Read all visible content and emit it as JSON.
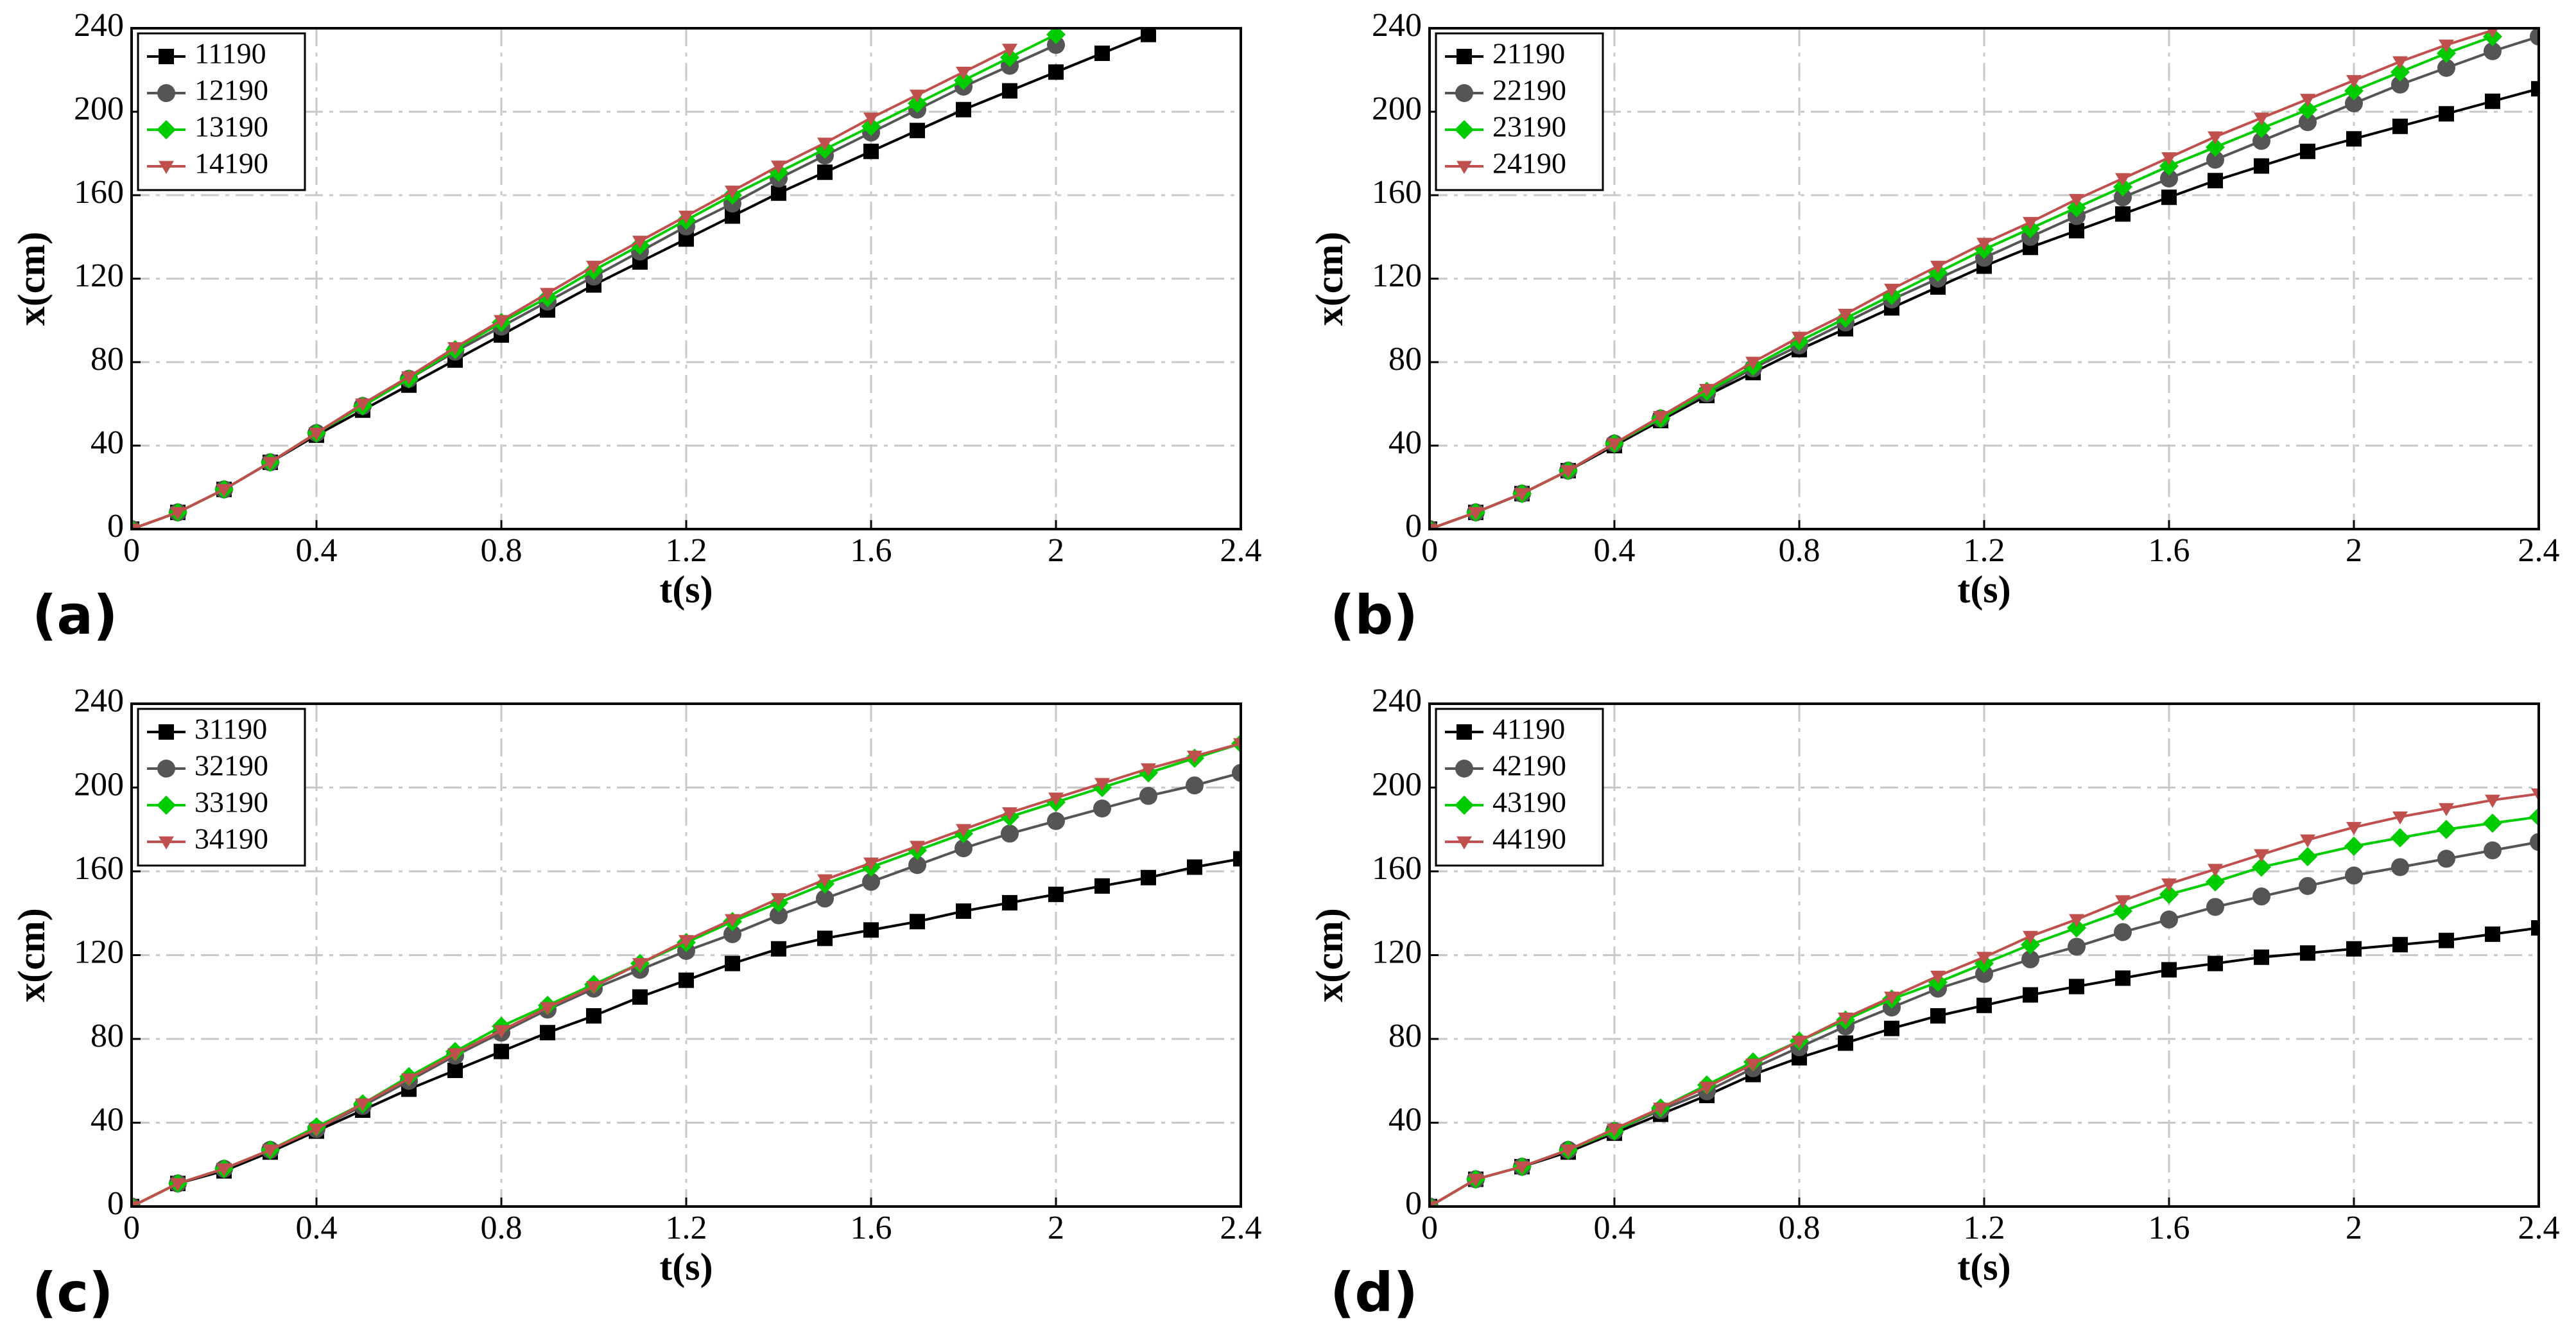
{
  "chart_data": [
    {
      "type": "line",
      "panel": "(a)",
      "xlabel": "t(s)",
      "ylabel": "x(cm)",
      "legend": "upper left",
      "grid": true,
      "x": [
        0,
        0.1,
        0.2,
        0.3,
        0.4,
        0.5,
        0.6,
        0.7,
        0.8,
        0.9,
        1,
        1.1,
        1.2,
        1.3,
        1.4,
        1.5,
        1.6,
        1.7,
        1.8,
        1.9,
        2,
        2.1,
        2.2,
        2.3,
        2.4
      ],
      "xlim": [
        0,
        2.4
      ],
      "xticks": [
        0,
        0.4,
        0.8,
        1.2,
        1.6,
        2,
        2.4
      ],
      "ylim": [
        0,
        240
      ],
      "yticks": [
        0,
        40,
        80,
        120,
        160,
        200,
        240
      ],
      "series": [
        {
          "name": "11190",
          "color": "#000000",
          "marker": "square",
          "values": [
            0,
            8,
            19,
            32,
            45,
            57,
            69,
            81,
            93,
            105,
            117,
            128,
            139,
            150,
            161,
            171,
            181,
            191,
            201,
            210,
            219,
            228,
            237,
            null,
            null
          ]
        },
        {
          "name": "12190",
          "color": "#555555",
          "marker": "circle",
          "values": [
            0,
            8,
            19,
            32,
            46,
            59,
            72,
            85,
            97,
            109,
            121,
            133,
            145,
            156,
            168,
            179,
            190,
            201,
            212,
            222,
            232,
            null,
            null,
            null,
            null
          ]
        },
        {
          "name": "13190",
          "color": "#00cc00",
          "marker": "diamond",
          "values": [
            0,
            8,
            19,
            32,
            46,
            59,
            72,
            86,
            99,
            111,
            124,
            136,
            148,
            160,
            171,
            182,
            193,
            204,
            215,
            226,
            237,
            null,
            null,
            null,
            null
          ]
        },
        {
          "name": "14190",
          "color": "#c0504d",
          "marker": "triangle",
          "values": [
            0,
            8,
            19,
            32,
            46,
            60,
            73,
            87,
            100,
            113,
            126,
            138,
            150,
            162,
            174,
            185,
            197,
            208,
            219,
            230,
            null,
            null,
            null,
            null,
            null
          ]
        }
      ]
    },
    {
      "type": "line",
      "panel": "(b)",
      "xlabel": "t(s)",
      "ylabel": "x(cm)",
      "legend": "upper left",
      "grid": true,
      "x": [
        0,
        0.1,
        0.2,
        0.3,
        0.4,
        0.5,
        0.6,
        0.7,
        0.8,
        0.9,
        1,
        1.1,
        1.2,
        1.3,
        1.4,
        1.5,
        1.6,
        1.7,
        1.8,
        1.9,
        2,
        2.1,
        2.2,
        2.3,
        2.4
      ],
      "xlim": [
        0,
        2.4
      ],
      "xticks": [
        0,
        0.4,
        0.8,
        1.2,
        1.6,
        2,
        2.4
      ],
      "ylim": [
        0,
        240
      ],
      "yticks": [
        0,
        40,
        80,
        120,
        160,
        200,
        240
      ],
      "series": [
        {
          "name": "21190",
          "color": "#000000",
          "marker": "square",
          "values": [
            0,
            8,
            17,
            28,
            40,
            52,
            64,
            75,
            86,
            96,
            106,
            116,
            126,
            135,
            143,
            151,
            159,
            167,
            174,
            181,
            187,
            193,
            199,
            205,
            211
          ]
        },
        {
          "name": "22190",
          "color": "#555555",
          "marker": "circle",
          "values": [
            0,
            8,
            17,
            28,
            41,
            53,
            65,
            77,
            88,
            99,
            110,
            120,
            130,
            140,
            150,
            159,
            168,
            177,
            186,
            195,
            204,
            213,
            221,
            229,
            236
          ]
        },
        {
          "name": "23190",
          "color": "#00cc00",
          "marker": "diamond",
          "values": [
            0,
            8,
            17,
            28,
            41,
            53,
            66,
            78,
            90,
            101,
            112,
            123,
            134,
            144,
            154,
            164,
            174,
            183,
            192,
            201,
            210,
            219,
            228,
            236,
            null
          ]
        },
        {
          "name": "24190",
          "color": "#c0504d",
          "marker": "triangle",
          "values": [
            0,
            8,
            17,
            28,
            41,
            54,
            67,
            80,
            92,
            103,
            115,
            126,
            137,
            147,
            158,
            168,
            178,
            188,
            197,
            206,
            215,
            224,
            232,
            239,
            null
          ]
        }
      ]
    },
    {
      "type": "line",
      "panel": "(c)",
      "xlabel": "t(s)",
      "ylabel": "x(cm)",
      "legend": "upper left",
      "grid": true,
      "x": [
        0,
        0.1,
        0.2,
        0.3,
        0.4,
        0.5,
        0.6,
        0.7,
        0.8,
        0.9,
        1,
        1.1,
        1.2,
        1.3,
        1.4,
        1.5,
        1.6,
        1.7,
        1.8,
        1.9,
        2,
        2.1,
        2.2,
        2.3,
        2.4
      ],
      "xlim": [
        0,
        2.4
      ],
      "xticks": [
        0,
        0.4,
        0.8,
        1.2,
        1.6,
        2,
        2.4
      ],
      "ylim": [
        0,
        240
      ],
      "yticks": [
        0,
        40,
        80,
        120,
        160,
        200,
        240
      ],
      "series": [
        {
          "name": "31190",
          "color": "#000000",
          "marker": "square",
          "values": [
            0,
            11,
            17,
            26,
            36,
            46,
            56,
            65,
            74,
            83,
            91,
            100,
            108,
            116,
            123,
            128,
            132,
            136,
            141,
            145,
            149,
            153,
            157,
            162,
            166
          ]
        },
        {
          "name": "32190",
          "color": "#555555",
          "marker": "circle",
          "values": [
            0,
            11,
            18,
            27,
            37,
            48,
            60,
            72,
            83,
            94,
            104,
            113,
            122,
            130,
            139,
            147,
            155,
            163,
            171,
            178,
            184,
            190,
            196,
            201,
            207
          ]
        },
        {
          "name": "33190",
          "color": "#00cc00",
          "marker": "diamond",
          "values": [
            0,
            11,
            18,
            27,
            38,
            49,
            62,
            74,
            86,
            96,
            106,
            116,
            126,
            136,
            145,
            154,
            162,
            170,
            178,
            186,
            193,
            200,
            207,
            214,
            221
          ]
        },
        {
          "name": "34190",
          "color": "#c0504d",
          "marker": "triangle",
          "values": [
            0,
            11,
            18,
            27,
            37,
            49,
            61,
            73,
            84,
            95,
            105,
            116,
            127,
            137,
            147,
            156,
            164,
            172,
            180,
            188,
            195,
            202,
            209,
            215,
            221
          ]
        }
      ]
    },
    {
      "type": "line",
      "panel": "(d)",
      "xlabel": "t(s)",
      "ylabel": "x(cm)",
      "legend": "upper left",
      "grid": true,
      "x": [
        0,
        0.1,
        0.2,
        0.3,
        0.4,
        0.5,
        0.6,
        0.7,
        0.8,
        0.9,
        1,
        1.1,
        1.2,
        1.3,
        1.4,
        1.5,
        1.6,
        1.7,
        1.8,
        1.9,
        2,
        2.1,
        2.2,
        2.3,
        2.4
      ],
      "xlim": [
        0,
        2.4
      ],
      "xticks": [
        0,
        0.4,
        0.8,
        1.2,
        1.6,
        2,
        2.4
      ],
      "ylim": [
        0,
        240
      ],
      "yticks": [
        0,
        40,
        80,
        120,
        160,
        200,
        240
      ],
      "series": [
        {
          "name": "41190",
          "color": "#000000",
          "marker": "square",
          "values": [
            0,
            13,
            19,
            26,
            35,
            44,
            53,
            63,
            71,
            78,
            85,
            91,
            96,
            101,
            105,
            109,
            113,
            116,
            119,
            121,
            123,
            125,
            127,
            130,
            133
          ]
        },
        {
          "name": "42190",
          "color": "#555555",
          "marker": "circle",
          "values": [
            0,
            13,
            19,
            27,
            36,
            46,
            55,
            66,
            76,
            86,
            95,
            104,
            111,
            118,
            124,
            131,
            137,
            143,
            148,
            153,
            158,
            162,
            166,
            170,
            174
          ]
        },
        {
          "name": "43190",
          "color": "#00cc00",
          "marker": "diamond",
          "values": [
            0,
            13,
            19,
            27,
            36,
            47,
            58,
            69,
            79,
            89,
            99,
            107,
            116,
            125,
            133,
            141,
            149,
            155,
            162,
            167,
            172,
            176,
            180,
            183,
            186
          ]
        },
        {
          "name": "44190",
          "color": "#c0504d",
          "marker": "triangle",
          "values": [
            0,
            13,
            19,
            27,
            37,
            47,
            57,
            68,
            79,
            90,
            100,
            110,
            119,
            129,
            137,
            146,
            154,
            161,
            168,
            175,
            181,
            186,
            190,
            194,
            197
          ]
        }
      ]
    }
  ]
}
